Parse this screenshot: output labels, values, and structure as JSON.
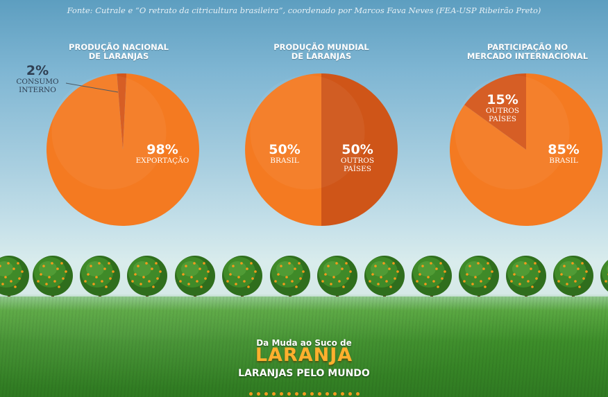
{
  "source": "Fonte: Cutrale e “O retrato da citricultura brasileira”, coordenado por Marcos Fava Neves (FEA-USP Ribeirão Preto)",
  "charts": [
    {
      "title_line1": "PRODUÇÃO NACIONAL",
      "title_line2": "DE LARANJAS"
    },
    {
      "title_line1": "PRODUÇÃO MUNDIAL",
      "title_line2": "DE LARANJAS"
    },
    {
      "title_line1": "PARTICIPAÇÃO NO",
      "title_line2": "MERCADO INTERNACIONAL"
    }
  ],
  "chart_data": [
    {
      "type": "pie",
      "title": "PRODUÇÃO NACIONAL DE LARANJAS",
      "slices": [
        {
          "label": "EXPORTAÇÃO",
          "value": 98,
          "pct_text": "98%",
          "label_lines": [
            "EXPORTAÇÃO"
          ],
          "color": "#f47a21"
        },
        {
          "label": "CONSUMO INTERNO",
          "value": 2,
          "pct_text": "2%",
          "label_lines": [
            "CONSUMO",
            "INTERNO"
          ],
          "color": "#d4561a"
        }
      ]
    },
    {
      "type": "pie",
      "title": "PRODUÇÃO MUNDIAL DE LARANJAS",
      "slices": [
        {
          "label": "BRASIL",
          "value": 50,
          "pct_text": "50%",
          "label_lines": [
            "BRASIL"
          ],
          "color": "#f47a21"
        },
        {
          "label": "OUTROS PAÍSES",
          "value": 50,
          "pct_text": "50%",
          "label_lines": [
            "OUTROS",
            "PAÍSES"
          ],
          "color": "#cf5518"
        }
      ]
    },
    {
      "type": "pie",
      "title": "PARTICIPAÇÃO NO MERCADO INTERNACIONAL",
      "slices": [
        {
          "label": "BRASIL",
          "value": 85,
          "pct_text": "85%",
          "label_lines": [
            "BRASIL"
          ],
          "color": "#f47a21"
        },
        {
          "label": "OUTROS PAÍSES",
          "value": 15,
          "pct_text": "15%",
          "label_lines": [
            "OUTROS",
            "PAÍSES"
          ],
          "color": "#d4561a"
        }
      ]
    }
  ],
  "brand": {
    "line1": "Da Muda ao Suco de",
    "line2": "LARANJA",
    "subtitle": "LARANJAS PELO MUNDO"
  },
  "colors": {
    "accent": "#f47a21",
    "accent_dark": "#cf5518",
    "brand_orange": "#ffb02e"
  }
}
